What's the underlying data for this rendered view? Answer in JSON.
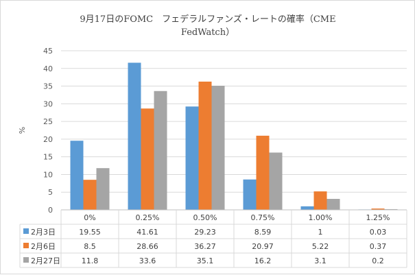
{
  "chart_data": {
    "type": "bar",
    "title_lines": [
      "9月17日のFOMC　フェデラルファンズ・レートの確率（CME",
      "FedWatch）"
    ],
    "ylabel": "%",
    "ylim": [
      0,
      45
    ],
    "yticks": [
      0,
      5,
      10,
      15,
      20,
      25,
      30,
      35,
      40,
      45
    ],
    "grid": true,
    "legend": "data-table",
    "categories": [
      "0%",
      "0.25%",
      "0.50%",
      "0.75%",
      "1.00%",
      "1.25%"
    ],
    "series": [
      {
        "name": "2月3日",
        "color": "#5b9bd5",
        "values": [
          19.55,
          41.61,
          29.23,
          8.59,
          1,
          0.03
        ]
      },
      {
        "name": "2月6日",
        "color": "#ed7d31",
        "values": [
          8.5,
          28.66,
          36.27,
          20.97,
          5.22,
          0.37
        ]
      },
      {
        "name": "2月27日",
        "color": "#a5a5a5",
        "values": [
          11.8,
          33.6,
          35.1,
          16.2,
          3.1,
          0.2
        ]
      }
    ]
  }
}
